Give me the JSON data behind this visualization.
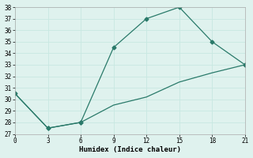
{
  "xlabel": "Humidex (Indice chaleur)",
  "line1_x": [
    0,
    3,
    6,
    9,
    12,
    15,
    18,
    21
  ],
  "line1_y": [
    30.5,
    27.5,
    28.0,
    34.5,
    37.0,
    38.0,
    35.0,
    33.0
  ],
  "line2_x": [
    0,
    3,
    6,
    9,
    12,
    15,
    18,
    21
  ],
  "line2_y": [
    30.5,
    27.5,
    28.0,
    29.5,
    30.2,
    31.5,
    32.3,
    33.0
  ],
  "line_color": "#2a7a6a",
  "marker": "D",
  "marker_size": 2.5,
  "line1_markers": [
    0,
    1,
    2,
    3,
    4,
    5,
    6,
    7
  ],
  "line2_markers": [
    1,
    2,
    7
  ],
  "xlim": [
    0,
    21
  ],
  "ylim": [
    27,
    38
  ],
  "xticks": [
    0,
    3,
    6,
    9,
    12,
    15,
    18,
    21
  ],
  "yticks": [
    27,
    28,
    29,
    30,
    31,
    32,
    33,
    34,
    35,
    36,
    37,
    38
  ],
  "bg_color": "#dff2ee",
  "grid_color": "#c8e8e2",
  "font_family": "monospace",
  "tick_fontsize": 5.5,
  "xlabel_fontsize": 6.5
}
